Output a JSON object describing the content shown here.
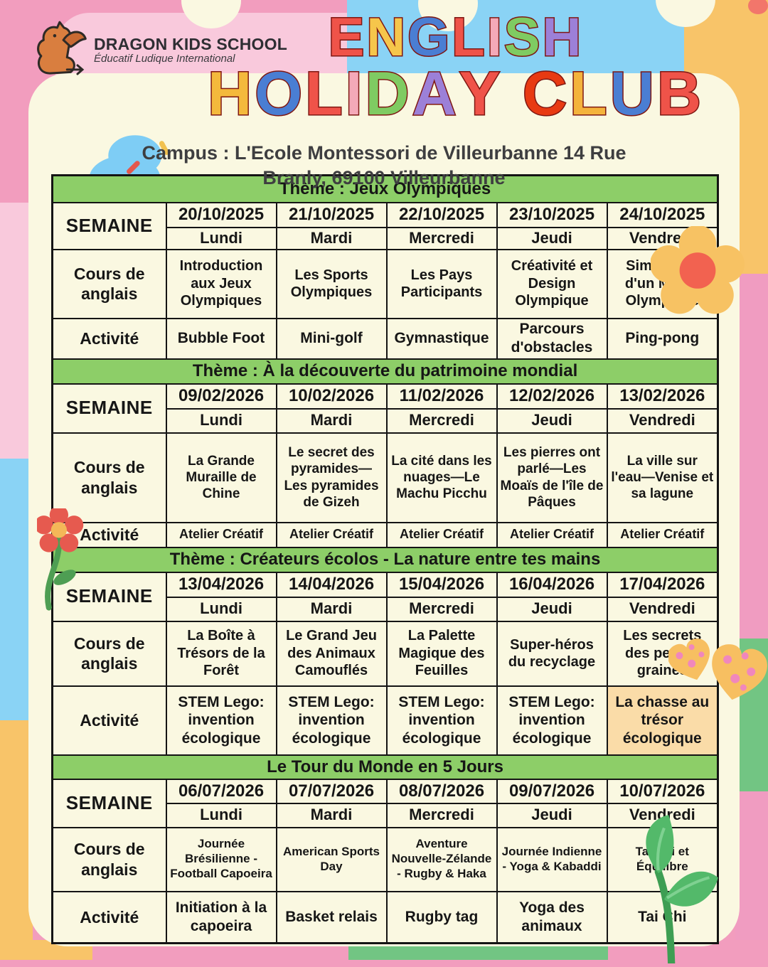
{
  "logo": {
    "name": "DRAGON KIDS SCHOOL",
    "tagline": "Éducatif Ludique International"
  },
  "title": {
    "line1": [
      {
        "ch": "E",
        "color": "#EF5349"
      },
      {
        "ch": "N",
        "color": "#F6C64B"
      },
      {
        "ch": "G",
        "color": "#4A7ED3"
      },
      {
        "ch": "L",
        "color": "#EF5349"
      },
      {
        "ch": "I",
        "color": "#F4A9B8"
      },
      {
        "ch": "S",
        "color": "#7FCB62"
      },
      {
        "ch": "H",
        "color": "#9C80D8"
      }
    ],
    "line2": [
      {
        "ch": "H",
        "color": "#F4B93C"
      },
      {
        "ch": "O",
        "color": "#4A7ED3"
      },
      {
        "ch": "L",
        "color": "#EF5349"
      },
      {
        "ch": "I",
        "color": "#F4A9B8"
      },
      {
        "ch": "D",
        "color": "#7FCB62"
      },
      {
        "ch": "A",
        "color": "#9C80D8"
      },
      {
        "ch": "Y",
        "color": "#EF5349"
      },
      {
        "ch": " ",
        "color": "#000000"
      },
      {
        "ch": "C",
        "color": "#E83A12"
      },
      {
        "ch": "L",
        "color": "#F4B33C"
      },
      {
        "ch": "U",
        "color": "#4A7ED3"
      },
      {
        "ch": "B",
        "color": "#EF5349"
      }
    ]
  },
  "campus": {
    "line1": "Campus : L'Ecole Montessori de Villeurbanne 14 Rue",
    "line2": "Branly, 69100 Villeurbanne"
  },
  "labels": {
    "week": "SEMAINE",
    "course_row": "Cours de anglais",
    "activity_row": "Activité"
  },
  "colors": {
    "theme_band": "#8DCE68",
    "card": "#FAF8E1",
    "highlight_bg": "#FADCA8",
    "highlight_text": "#DC3B2A",
    "border": "#141414"
  },
  "sections": [
    {
      "theme": "Thème : Jeux Olympiques",
      "dates": [
        "20/10/2025",
        "21/10/2025",
        "22/10/2025",
        "23/10/2025",
        "24/10/2025"
      ],
      "days": [
        "Lundi",
        "Mardi",
        "Mercredi",
        "Jeudi",
        "Vendredi"
      ],
      "lessons": [
        "Introduction aux Jeux Olympiques",
        "Les Sports Olympiques",
        "Les Pays Participants",
        "Créativité et Design Olympique",
        "Simulation d'un Match Olympique"
      ],
      "activities": [
        {
          "text": "Bubble Foot",
          "highlight": false
        },
        {
          "text": "Mini-golf",
          "highlight": false
        },
        {
          "text": "Gymnastique",
          "highlight": false
        },
        {
          "text": "Parcours d'obstacles",
          "highlight": false
        },
        {
          "text": "Ping-pong",
          "highlight": false
        }
      ]
    },
    {
      "theme": "Thème : À la découverte du patrimoine mondial",
      "dates": [
        "09/02/2026",
        "10/02/2026",
        "11/02/2026",
        "12/02/2026",
        "13/02/2026"
      ],
      "days": [
        "Lundi",
        "Mardi",
        "Mercredi",
        "Jeudi",
        "Vendredi"
      ],
      "lessons": [
        "La Grande Muraille de Chine",
        "Le secret des pyramides—Les pyramides de Gizeh",
        "La cité dans les nuages—Le Machu Picchu",
        "Les pierres ont parlé—Les Moaïs de l'île de Pâques",
        "La ville sur l'eau—Venise et sa lagune"
      ],
      "activities": [
        {
          "text": "Atelier Créatif",
          "highlight": false
        },
        {
          "text": "Atelier Créatif",
          "highlight": false
        },
        {
          "text": "Atelier Créatif",
          "highlight": false
        },
        {
          "text": "Atelier Créatif",
          "highlight": false
        },
        {
          "text": "Atelier Créatif",
          "highlight": false
        }
      ]
    },
    {
      "theme": "Thème : Créateurs écolos - La nature entre tes mains",
      "dates": [
        "13/04/2026",
        "14/04/2026",
        "15/04/2026",
        "16/04/2026",
        "17/04/2026"
      ],
      "days": [
        "Lundi",
        "Mardi",
        "Mercredi",
        "Jeudi",
        "Vendredi"
      ],
      "lessons": [
        "La Boîte à Trésors de la Forêt",
        "Le Grand Jeu des Animaux Camouflés",
        "La Palette Magique des Feuilles",
        "Super-héros du recyclage",
        "Les secrets des petites graines"
      ],
      "activities": [
        {
          "text": "STEM Lego: invention écologique",
          "highlight": false
        },
        {
          "text": "STEM Lego: invention écologique",
          "highlight": false
        },
        {
          "text": "STEM Lego: invention écologique",
          "highlight": false
        },
        {
          "text": "STEM Lego: invention écologique",
          "highlight": false
        },
        {
          "text": "La chasse au trésor écologique",
          "highlight": true
        }
      ]
    },
    {
      "theme": "Le Tour du Monde en 5 Jours",
      "dates": [
        "06/07/2026",
        "07/07/2026",
        "08/07/2026",
        "09/07/2026",
        "10/07/2026"
      ],
      "days": [
        "Lundi",
        "Mardi",
        "Mercredi",
        "Jeudi",
        "Vendredi"
      ],
      "lessons": [
        "Journée Brésilienne - Football Capoeira",
        "American Sports Day",
        "Aventure Nouvelle-Zélande - Rugby & Haka",
        "Journée Indienne - Yoga & Kabaddi",
        "Tai Chi et Équilibre"
      ],
      "activities": [
        {
          "text": "Initiation à la capoeira",
          "highlight": false
        },
        {
          "text": "Basket relais",
          "highlight": false
        },
        {
          "text": "Rugby tag",
          "highlight": false
        },
        {
          "text": "Yoga des animaux",
          "highlight": false
        },
        {
          "text": "Tai Chi",
          "highlight": false
        }
      ]
    }
  ]
}
